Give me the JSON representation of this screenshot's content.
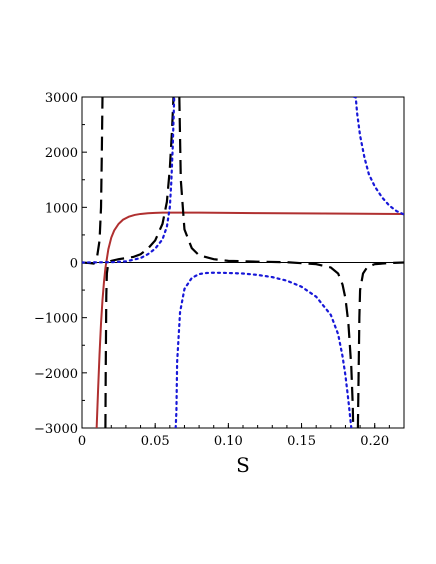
{
  "chart_data": {
    "type": "line",
    "xlabel": "S",
    "ylabel": "",
    "xlim": [
      0,
      0.22
    ],
    "ylim": [
      -3000,
      3000
    ],
    "xticks": [
      0,
      0.05,
      0.1,
      0.15,
      0.2
    ],
    "xtick_labels": [
      "0",
      "0.05",
      "0.10",
      "0.15",
      "0.20"
    ],
    "yticks": [
      -3000,
      -2000,
      -1000,
      0,
      1000,
      2000,
      3000
    ],
    "ytick_labels": [
      "−3000",
      "−2000",
      "−1000",
      "0",
      "1000",
      "2000",
      "3000"
    ],
    "series": [
      {
        "style": "solid",
        "color": "#b03030",
        "x": [
          0.01,
          0.011,
          0.012,
          0.013,
          0.014,
          0.015,
          0.016,
          0.018,
          0.02,
          0.022,
          0.025,
          0.028,
          0.032,
          0.036,
          0.04,
          0.045,
          0.05,
          0.055,
          0.06,
          0.07,
          0.08,
          0.1,
          0.12,
          0.15,
          0.18,
          0.22
        ],
        "y": [
          -3000,
          -2300,
          -1650,
          -1100,
          -680,
          -360,
          -100,
          240,
          450,
          580,
          700,
          775,
          830,
          862,
          880,
          893,
          900,
          903,
          905,
          905,
          904,
          900,
          895,
          890,
          886,
          880
        ]
      },
      {
        "style": "dashed",
        "color": "#000000",
        "x": [
          0.0,
          0.005,
          0.008,
          0.01,
          0.012,
          0.013,
          0.0135,
          0.014,
          null,
          0.016,
          0.0162,
          0.0166,
          0.017,
          0.018,
          0.02,
          0.025,
          0.03,
          0.035,
          0.04,
          0.045,
          0.05,
          0.055,
          0.058,
          0.06,
          0.0615,
          0.0625,
          null,
          0.0665,
          0.0675,
          0.07,
          0.075,
          0.08,
          0.09,
          0.1,
          0.12,
          0.14,
          0.16,
          0.17,
          0.175,
          0.178,
          0.18,
          0.182,
          0.184,
          0.185,
          0.1853,
          null,
          0.1885,
          0.189,
          0.1895,
          0.19,
          0.192,
          0.195,
          0.2,
          0.21,
          0.22
        ],
        "y": [
          0,
          -10,
          -20,
          50,
          400,
          1000,
          1900,
          3000,
          null,
          -3000,
          -2000,
          -600,
          -200,
          0,
          30,
          60,
          80,
          100,
          150,
          250,
          400,
          700,
          1100,
          1700,
          2400,
          3000,
          null,
          3000,
          1500,
          600,
          260,
          130,
          60,
          30,
          15,
          5,
          -30,
          -90,
          -200,
          -400,
          -650,
          -1100,
          -1900,
          -2600,
          -3000,
          null,
          -3000,
          -2000,
          -1000,
          -500,
          -200,
          -80,
          -30,
          -10,
          0
        ]
      },
      {
        "style": "dotted",
        "color": "#1818d8",
        "x": [
          0.0,
          0.02,
          0.03,
          0.04,
          0.045,
          0.05,
          0.055,
          0.058,
          0.06,
          0.061,
          0.062,
          0.063,
          0.0635,
          null,
          0.064,
          0.0645,
          0.065,
          0.067,
          0.07,
          0.075,
          0.08,
          0.085,
          0.09,
          0.1,
          0.11,
          0.12,
          0.13,
          0.14,
          0.15,
          0.16,
          0.17,
          0.175,
          0.178,
          0.18,
          0.182,
          0.184,
          0.1855,
          null,
          0.186,
          0.187,
          0.188,
          0.19,
          0.193,
          0.196,
          0.2,
          0.205,
          0.21,
          0.215,
          0.22
        ],
        "y": [
          0,
          5,
          20,
          80,
          150,
          250,
          420,
          650,
          1000,
          1450,
          2100,
          3000,
          3000,
          null,
          -3000,
          -2700,
          -1800,
          -900,
          -480,
          -280,
          -210,
          -190,
          -185,
          -190,
          -200,
          -225,
          -265,
          -330,
          -440,
          -620,
          -950,
          -1300,
          -1700,
          -2050,
          -2500,
          -3000,
          -3000,
          null,
          3000,
          3000,
          2700,
          2300,
          1900,
          1600,
          1380,
          1180,
          1030,
          930,
          870
        ]
      }
    ]
  }
}
